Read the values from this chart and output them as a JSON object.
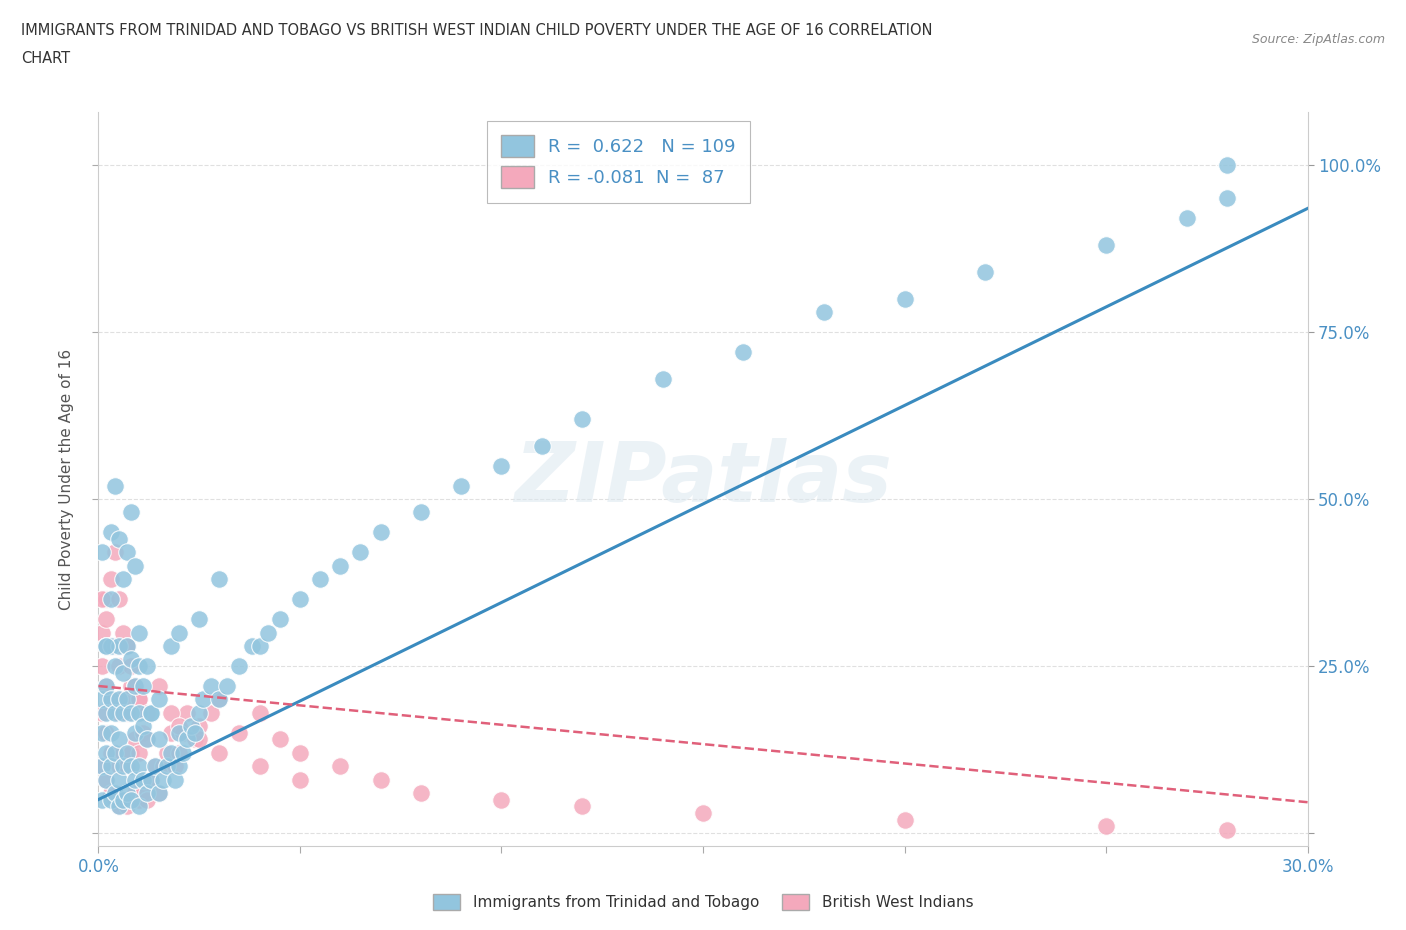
{
  "title_line1": "IMMIGRANTS FROM TRINIDAD AND TOBAGO VS BRITISH WEST INDIAN CHILD POVERTY UNDER THE AGE OF 16 CORRELATION",
  "title_line2": "CHART",
  "source_text": "Source: ZipAtlas.com",
  "ylabel": "Child Poverty Under the Age of 16",
  "xmin": 0.0,
  "xmax": 0.3,
  "ymin": -0.02,
  "ymax": 1.08,
  "ytick_values": [
    0.0,
    0.25,
    0.5,
    0.75,
    1.0
  ],
  "ytick_labels_right": [
    "",
    "25.0%",
    "50.0%",
    "75.0%",
    "100.0%"
  ],
  "xtick_values": [
    0.0,
    0.05,
    0.1,
    0.15,
    0.2,
    0.25,
    0.3
  ],
  "xtick_labels": [
    "0.0%",
    "",
    "",
    "",
    "",
    "",
    "30.0%"
  ],
  "blue_color": "#92c5de",
  "pink_color": "#f4a9bc",
  "blue_line_color": "#3a8bbf",
  "pink_line_color": "#e0607a",
  "R_blue": 0.622,
  "N_blue": 109,
  "R_pink": -0.081,
  "N_pink": 87,
  "legend_blue_label": "Immigrants from Trinidad and Tobago",
  "legend_pink_label": "British West Indians",
  "watermark": "ZIPatlas",
  "background_color": "#ffffff",
  "grid_color": "#cccccc",
  "blue_line_intercept": 0.05,
  "blue_line_slope": 2.95,
  "pink_line_intercept": 0.22,
  "pink_line_slope": -0.58,
  "blue_x": [
    0.001,
    0.001,
    0.001,
    0.001,
    0.002,
    0.002,
    0.002,
    0.002,
    0.002,
    0.003,
    0.003,
    0.003,
    0.003,
    0.003,
    0.004,
    0.004,
    0.004,
    0.004,
    0.005,
    0.005,
    0.005,
    0.005,
    0.005,
    0.006,
    0.006,
    0.006,
    0.006,
    0.007,
    0.007,
    0.007,
    0.007,
    0.008,
    0.008,
    0.008,
    0.008,
    0.009,
    0.009,
    0.009,
    0.01,
    0.01,
    0.01,
    0.01,
    0.011,
    0.011,
    0.012,
    0.012,
    0.013,
    0.013,
    0.014,
    0.015,
    0.015,
    0.016,
    0.017,
    0.018,
    0.019,
    0.02,
    0.02,
    0.021,
    0.022,
    0.023,
    0.024,
    0.025,
    0.026,
    0.028,
    0.03,
    0.032,
    0.035,
    0.038,
    0.04,
    0.042,
    0.045,
    0.05,
    0.055,
    0.06,
    0.065,
    0.07,
    0.08,
    0.09,
    0.1,
    0.11,
    0.12,
    0.14,
    0.16,
    0.18,
    0.2,
    0.22,
    0.25,
    0.27,
    0.28,
    0.001,
    0.002,
    0.003,
    0.003,
    0.004,
    0.005,
    0.006,
    0.007,
    0.008,
    0.009,
    0.01,
    0.011,
    0.012,
    0.013,
    0.015,
    0.018,
    0.02,
    0.025,
    0.03,
    0.28
  ],
  "blue_y": [
    0.05,
    0.1,
    0.15,
    0.2,
    0.08,
    0.12,
    0.18,
    0.22,
    0.28,
    0.05,
    0.1,
    0.15,
    0.2,
    0.28,
    0.06,
    0.12,
    0.18,
    0.25,
    0.04,
    0.08,
    0.14,
    0.2,
    0.28,
    0.05,
    0.1,
    0.18,
    0.24,
    0.06,
    0.12,
    0.2,
    0.28,
    0.05,
    0.1,
    0.18,
    0.26,
    0.08,
    0.15,
    0.22,
    0.04,
    0.1,
    0.18,
    0.25,
    0.08,
    0.16,
    0.06,
    0.14,
    0.08,
    0.18,
    0.1,
    0.06,
    0.14,
    0.08,
    0.1,
    0.12,
    0.08,
    0.1,
    0.15,
    0.12,
    0.14,
    0.16,
    0.15,
    0.18,
    0.2,
    0.22,
    0.2,
    0.22,
    0.25,
    0.28,
    0.28,
    0.3,
    0.32,
    0.35,
    0.38,
    0.4,
    0.42,
    0.45,
    0.48,
    0.52,
    0.55,
    0.58,
    0.62,
    0.68,
    0.72,
    0.78,
    0.8,
    0.84,
    0.88,
    0.92,
    0.95,
    0.42,
    0.28,
    0.35,
    0.45,
    0.52,
    0.44,
    0.38,
    0.42,
    0.48,
    0.4,
    0.3,
    0.22,
    0.25,
    0.18,
    0.2,
    0.28,
    0.3,
    0.32,
    0.38,
    1.0
  ],
  "pink_x": [
    0.001,
    0.001,
    0.001,
    0.001,
    0.002,
    0.002,
    0.002,
    0.002,
    0.002,
    0.003,
    0.003,
    0.003,
    0.003,
    0.004,
    0.004,
    0.004,
    0.004,
    0.005,
    0.005,
    0.005,
    0.005,
    0.006,
    0.006,
    0.006,
    0.006,
    0.007,
    0.007,
    0.007,
    0.007,
    0.008,
    0.008,
    0.008,
    0.009,
    0.009,
    0.009,
    0.01,
    0.01,
    0.01,
    0.011,
    0.011,
    0.012,
    0.012,
    0.013,
    0.014,
    0.015,
    0.016,
    0.017,
    0.018,
    0.019,
    0.02,
    0.021,
    0.022,
    0.024,
    0.025,
    0.028,
    0.03,
    0.035,
    0.04,
    0.045,
    0.05,
    0.06,
    0.07,
    0.08,
    0.1,
    0.12,
    0.15,
    0.2,
    0.25,
    0.28,
    0.001,
    0.002,
    0.003,
    0.004,
    0.005,
    0.006,
    0.007,
    0.008,
    0.009,
    0.01,
    0.012,
    0.015,
    0.018,
    0.02,
    0.025,
    0.03,
    0.04,
    0.05
  ],
  "pink_y": [
    0.1,
    0.18,
    0.25,
    0.3,
    0.08,
    0.15,
    0.22,
    0.28,
    0.35,
    0.06,
    0.12,
    0.2,
    0.28,
    0.05,
    0.12,
    0.2,
    0.28,
    0.04,
    0.1,
    0.18,
    0.25,
    0.05,
    0.12,
    0.2,
    0.28,
    0.04,
    0.1,
    0.18,
    0.28,
    0.05,
    0.12,
    0.22,
    0.06,
    0.14,
    0.22,
    0.05,
    0.12,
    0.2,
    0.06,
    0.15,
    0.05,
    0.14,
    0.08,
    0.1,
    0.06,
    0.1,
    0.12,
    0.15,
    0.1,
    0.12,
    0.15,
    0.18,
    0.14,
    0.16,
    0.18,
    0.2,
    0.15,
    0.18,
    0.14,
    0.12,
    0.1,
    0.08,
    0.06,
    0.05,
    0.04,
    0.03,
    0.02,
    0.01,
    0.005,
    0.35,
    0.32,
    0.38,
    0.42,
    0.35,
    0.3,
    0.28,
    0.25,
    0.22,
    0.2,
    0.18,
    0.22,
    0.18,
    0.16,
    0.14,
    0.12,
    0.1,
    0.08
  ]
}
